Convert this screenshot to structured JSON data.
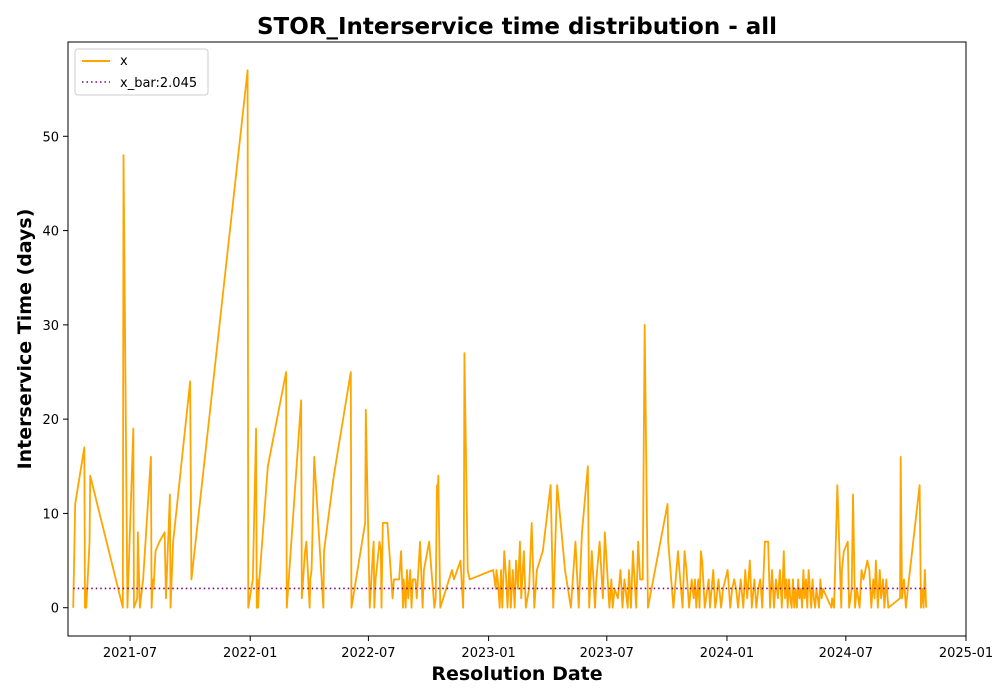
{
  "chart_data": {
    "type": "line",
    "title": "STOR_Interservice time distribution - all",
    "xlabel": "Resolution Date",
    "ylabel": "Interservice Time (days)",
    "xlim": [
      "2021-03-28",
      "2025-01-01"
    ],
    "ylim": [
      -3,
      60
    ],
    "x_ticks": [
      "2021-07",
      "2022-01",
      "2022-07",
      "2023-01",
      "2023-07",
      "2024-01",
      "2024-07",
      "2025-01"
    ],
    "y_ticks": [
      0,
      10,
      20,
      30,
      40,
      50
    ],
    "grid": false,
    "legend_position": "upper-left",
    "series": [
      {
        "name": "x",
        "color": "#ffa500",
        "style": "solid",
        "x": [
          "2021-04-05",
          "2021-04-08",
          "2021-04-22",
          "2021-04-23",
          "2021-04-24",
          "2021-04-25",
          "2021-04-30",
          "2021-05-01",
          "2021-06-20",
          "2021-06-21",
          "2021-06-27",
          "2021-07-06",
          "2021-07-07",
          "2021-07-12",
          "2021-07-13",
          "2021-07-16",
          "2021-07-21",
          "2021-08-02",
          "2021-08-03",
          "2021-08-05",
          "2021-08-06",
          "2021-08-09",
          "2021-08-15",
          "2021-08-23",
          "2021-08-25",
          "2021-08-31",
          "2021-09-01",
          "2021-09-05",
          "2021-10-01",
          "2021-10-03",
          "2021-12-28",
          "2021-12-29",
          "2022-01-05",
          "2022-01-10",
          "2022-01-11",
          "2022-01-12",
          "2022-01-13",
          "2022-01-15",
          "2022-01-28",
          "2022-02-25",
          "2022-02-26",
          "2022-03-20",
          "2022-03-21",
          "2022-03-26",
          "2022-03-28",
          "2022-04-02",
          "2022-04-03",
          "2022-04-05",
          "2022-04-09",
          "2022-04-23",
          "2022-04-24",
          "2022-05-09",
          "2022-06-04",
          "2022-06-05",
          "2022-06-26",
          "2022-06-27",
          "2022-07-03",
          "2022-07-08",
          "2022-07-09",
          "2022-07-10",
          "2022-07-12",
          "2022-07-18",
          "2022-07-20",
          "2022-07-21",
          "2022-07-23",
          "2022-07-30",
          "2022-08-07",
          "2022-08-09",
          "2022-08-17",
          "2022-08-20",
          "2022-08-23",
          "2022-08-24",
          "2022-08-27",
          "2022-08-29",
          "2022-08-31",
          "2022-09-03",
          "2022-09-05",
          "2022-09-07",
          "2022-09-11",
          "2022-09-13",
          "2022-09-18",
          "2022-09-22",
          "2022-09-24",
          "2022-10-02",
          "2022-10-10",
          "2022-10-12",
          "2022-10-14",
          "2022-10-15",
          "2022-10-16",
          "2022-10-19",
          "2022-11-06",
          "2022-11-09",
          "2022-11-19",
          "2022-11-23",
          "2022-11-24",
          "2022-11-25",
          "2022-11-30",
          "2022-12-03",
          "2023-01-08",
          "2023-01-12",
          "2023-01-13",
          "2023-01-15",
          "2023-01-18",
          "2023-01-20",
          "2023-01-22",
          "2023-01-25",
          "2023-01-28",
          "2023-01-30",
          "2023-02-02",
          "2023-02-04",
          "2023-02-07",
          "2023-02-10",
          "2023-02-12",
          "2023-02-15",
          "2023-02-18",
          "2023-02-20",
          "2023-02-24",
          "2023-02-27",
          "2023-03-04",
          "2023-03-08",
          "2023-03-12",
          "2023-03-16",
          "2023-03-25",
          "2023-04-06",
          "2023-04-10",
          "2023-04-16",
          "2023-04-28",
          "2023-05-07",
          "2023-05-14",
          "2023-05-19",
          "2023-05-24",
          "2023-06-02",
          "2023-06-04",
          "2023-06-08",
          "2023-06-13",
          "2023-06-15",
          "2023-06-20",
          "2023-06-25",
          "2023-06-28",
          "2023-07-05",
          "2023-07-08",
          "2023-07-10",
          "2023-07-13",
          "2023-07-18",
          "2023-07-22",
          "2023-07-25",
          "2023-07-28",
          "2023-08-02",
          "2023-08-04",
          "2023-08-07",
          "2023-08-10",
          "2023-08-15",
          "2023-08-18",
          "2023-08-21",
          "2023-08-25",
          "2023-08-28",
          "2023-09-02",
          "2023-10-02",
          "2023-10-03",
          "2023-10-11",
          "2023-10-18",
          "2023-10-19",
          "2023-10-25",
          "2023-10-28",
          "2023-10-31",
          "2023-11-04",
          "2023-11-08",
          "2023-11-11",
          "2023-11-13",
          "2023-11-15",
          "2023-11-18",
          "2023-11-20",
          "2023-11-22",
          "2023-11-24",
          "2023-11-28",
          "2023-12-04",
          "2023-12-06",
          "2023-12-11",
          "2023-12-14",
          "2023-12-16",
          "2023-12-19",
          "2023-12-23",
          "2023-12-26",
          "2024-01-02",
          "2024-01-06",
          "2024-01-09",
          "2024-01-12",
          "2024-01-15",
          "2024-01-18",
          "2024-01-22",
          "2024-01-26",
          "2024-01-29",
          "2024-02-01",
          "2024-02-05",
          "2024-02-08",
          "2024-02-12",
          "2024-02-15",
          "2024-02-18",
          "2024-02-21",
          "2024-02-24",
          "2024-02-28",
          "2024-03-04",
          "2024-03-07",
          "2024-03-10",
          "2024-03-13",
          "2024-03-16",
          "2024-03-19",
          "2024-03-22",
          "2024-03-25",
          "2024-03-28",
          "2024-03-30",
          "2024-04-01",
          "2024-04-03",
          "2024-04-05",
          "2024-04-07",
          "2024-04-09",
          "2024-04-11",
          "2024-04-13",
          "2024-04-15",
          "2024-04-17",
          "2024-04-19",
          "2024-04-21",
          "2024-04-23",
          "2024-04-25",
          "2024-04-27",
          "2024-04-29",
          "2024-05-01",
          "2024-05-03",
          "2024-05-05",
          "2024-05-07",
          "2024-05-09",
          "2024-05-11",
          "2024-05-13",
          "2024-05-15",
          "2024-05-17",
          "2024-05-19",
          "2024-05-21",
          "2024-05-23",
          "2024-05-25",
          "2024-05-27",
          "2024-06-09",
          "2024-06-10",
          "2024-06-13",
          "2024-06-18",
          "2024-06-24",
          "2024-06-25",
          "2024-06-28",
          "2024-07-04",
          "2024-07-06",
          "2024-07-10",
          "2024-07-12",
          "2024-07-15",
          "2024-07-18",
          "2024-07-20",
          "2024-07-22",
          "2024-07-25",
          "2024-07-28",
          "2024-07-31",
          "2024-08-03",
          "2024-08-06",
          "2024-08-09",
          "2024-08-12",
          "2024-08-14",
          "2024-08-16",
          "2024-08-19",
          "2024-08-22",
          "2024-08-24",
          "2024-08-27",
          "2024-08-29",
          "2024-09-01",
          "2024-09-04",
          "2024-09-22",
          "2024-09-23",
          "2024-09-25",
          "2024-09-28",
          "2024-10-01",
          "2024-10-04",
          "2024-10-22",
          "2024-10-24",
          "2024-10-26",
          "2024-10-28",
          "2024-10-30",
          "2024-11-01"
        ],
        "y": [
          0,
          11,
          17,
          0,
          2,
          0,
          7,
          14,
          0,
          48,
          0,
          19,
          0,
          1,
          8,
          0,
          3,
          16,
          0,
          3,
          2,
          6,
          7,
          8,
          1,
          12,
          0,
          7,
          24,
          3,
          57,
          0,
          3,
          19,
          0,
          3,
          0,
          3,
          15,
          25,
          0,
          22,
          1,
          6,
          7,
          0,
          3,
          4,
          16,
          0,
          6,
          14,
          25,
          0,
          9,
          21,
          0,
          6,
          7,
          0,
          3,
          7,
          6,
          0,
          9,
          9,
          1,
          3,
          3,
          6,
          0,
          3,
          0,
          4,
          1,
          4,
          0,
          3,
          3,
          1,
          7,
          0,
          4,
          7,
          0,
          1,
          13,
          12,
          14,
          0,
          4,
          3,
          5,
          0,
          4,
          27,
          4,
          3,
          4,
          2,
          4,
          3,
          0,
          4,
          0,
          6,
          3,
          0,
          5,
          0,
          4,
          0,
          5,
          2,
          7,
          1,
          6,
          0,
          2,
          9,
          0,
          4,
          6,
          13,
          0,
          13,
          4,
          0,
          7,
          0,
          8,
          15,
          0,
          6,
          0,
          3,
          7,
          1,
          8,
          0,
          3,
          0,
          2,
          1,
          4,
          0,
          3,
          0,
          4,
          0,
          6,
          0,
          7,
          3,
          3,
          30,
          0,
          11,
          7,
          0,
          6,
          5,
          0,
          6,
          4,
          0,
          3,
          1,
          3,
          0,
          3,
          0,
          6,
          5,
          0,
          3,
          0,
          4,
          0,
          1,
          3,
          0,
          2,
          4,
          0,
          2,
          3,
          2,
          0,
          3,
          0,
          4,
          1,
          5,
          0,
          3,
          0,
          2,
          3,
          0,
          7,
          7,
          0,
          4,
          0,
          3,
          1,
          4,
          0,
          6,
          1,
          3,
          0,
          3,
          1,
          0,
          3,
          0,
          2,
          0,
          3,
          1,
          2,
          0,
          4,
          1,
          3,
          0,
          4,
          2,
          0,
          3,
          1,
          0,
          2,
          1,
          0,
          3,
          1,
          2,
          0,
          1,
          0,
          13,
          0,
          4,
          6,
          7,
          0,
          2,
          12,
          0,
          2,
          1,
          0,
          4,
          3,
          4,
          5,
          4,
          0,
          3,
          1,
          5,
          0,
          4,
          1,
          3,
          0,
          3,
          0,
          1,
          16,
          1,
          3,
          0,
          2,
          13,
          0,
          2,
          0,
          4,
          0
        ],
        "note_style": "series"
      },
      {
        "name": "x_bar:2.045",
        "color": "#800080",
        "style": "dotted",
        "x": [
          "2021-04-05",
          "2024-11-01"
        ],
        "y": [
          2.045,
          2.045
        ]
      }
    ]
  }
}
